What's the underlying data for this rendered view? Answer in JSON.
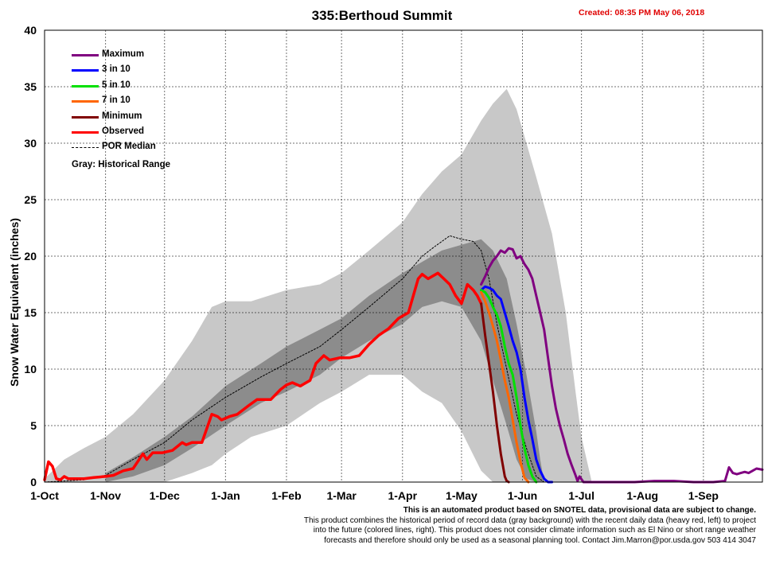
{
  "page": {
    "title": "335:Berthoud Summit",
    "created": "Created: 08:35 PM May 06, 2018",
    "footer": [
      "This is an automated product based on SNOTEL data, provisional data are subject to change.",
      "This product combines the historical period of record data (gray background) with the recent daily data (heavy red, left) to project",
      "into the future (colored lines, right). This product does not consider climate information such as El Nino or short range weather",
      "forecasts and therefore should only be used as a seasonal planning tool. Contact Jim.Marron@por.usda.gov 503 414 3047"
    ]
  },
  "legend": {
    "items": [
      {
        "label": "Maximum",
        "color": "#800080"
      },
      {
        "label": "3 in 10",
        "color": "#0000ff"
      },
      {
        "label": "5 in 10",
        "color": "#00e000"
      },
      {
        "label": "7 in 10",
        "color": "#ff6600"
      },
      {
        "label": "Minimum",
        "color": "#800000"
      },
      {
        "label": "Observed",
        "color": "#ff0000"
      },
      {
        "label": "POR Median",
        "color": "#000000",
        "dashed": true
      }
    ],
    "gray_note": "Gray: Historical Range"
  },
  "chart_data": {
    "type": "line",
    "title": "335:Berthoud Summit",
    "ylabel": "Snow Water Equivalent (inches)",
    "xlabel": "",
    "ylim": [
      0,
      40
    ],
    "yticks": [
      0,
      5,
      10,
      15,
      20,
      25,
      30,
      35,
      40
    ],
    "xlim_days": [
      0,
      365
    ],
    "x_unit": "days since 1-Oct",
    "x_ticks": [
      {
        "label": "1-Oct",
        "day": 0
      },
      {
        "label": "1-Nov",
        "day": 31
      },
      {
        "label": "1-Dec",
        "day": 61
      },
      {
        "label": "1-Jan",
        "day": 92
      },
      {
        "label": "1-Feb",
        "day": 123
      },
      {
        "label": "1-Mar",
        "day": 151
      },
      {
        "label": "1-Apr",
        "day": 182
      },
      {
        "label": "1-May",
        "day": 212
      },
      {
        "label": "1-Jun",
        "day": 243
      },
      {
        "label": "1-Jul",
        "day": 273
      },
      {
        "label": "1-Aug",
        "day": 304
      },
      {
        "label": "1-Sep",
        "day": 335
      }
    ],
    "grid": true,
    "legend_position": "top-left",
    "historical_range": {
      "color": "#c8c8c8",
      "x": [
        0,
        10,
        20,
        31,
        45,
        61,
        75,
        85,
        92,
        105,
        123,
        140,
        151,
        165,
        182,
        192,
        202,
        212,
        222,
        228,
        235,
        240,
        245,
        250,
        258,
        265,
        270,
        273,
        278
      ],
      "high": [
        0.3,
        2.0,
        3.0,
        4.0,
        6.0,
        9.0,
        12.5,
        15.5,
        16.0,
        16.0,
        17.0,
        17.5,
        18.5,
        20.5,
        23.0,
        25.5,
        27.5,
        29.0,
        32.0,
        33.5,
        34.8,
        33.0,
        30.0,
        27.0,
        22.0,
        15.0,
        8.0,
        4.0,
        0.2
      ],
      "low": [
        0,
        0,
        0,
        0,
        0,
        0,
        0.8,
        1.5,
        2.5,
        4.0,
        5.0,
        7.0,
        8.0,
        9.5,
        9.5,
        8.0,
        7.0,
        4.5,
        1.0,
        0,
        0,
        0,
        0,
        0,
        0,
        0,
        0,
        0,
        0
      ]
    },
    "interquartile_range": {
      "color": "#8c8c8c",
      "x": [
        31,
        45,
        61,
        75,
        92,
        110,
        123,
        140,
        151,
        165,
        182,
        192,
        202,
        212,
        222,
        228,
        235,
        240,
        245,
        250,
        252,
        254
      ],
      "high": [
        0.8,
        2.2,
        4.0,
        5.8,
        8.5,
        10.5,
        12.0,
        13.5,
        14.5,
        16.5,
        18.5,
        19.5,
        20.5,
        21.0,
        21.5,
        20.5,
        18.0,
        14.0,
        9.5,
        4.5,
        2.0,
        0
      ],
      "low": [
        0,
        0.5,
        1.5,
        3.0,
        5.0,
        7.0,
        8.0,
        9.5,
        11.0,
        12.5,
        14.0,
        15.5,
        16.0,
        15.5,
        12.5,
        9.0,
        5.0,
        2.0,
        0.3,
        0,
        0,
        0
      ]
    },
    "series": [
      {
        "name": "POR Median",
        "color": "#000000",
        "dashed": true,
        "x": [
          0,
          10,
          20,
          31,
          45,
          61,
          75,
          92,
          110,
          123,
          140,
          151,
          165,
          182,
          192,
          198,
          206,
          212,
          218,
          222,
          226,
          230,
          235,
          240,
          245,
          250,
          254
        ],
        "y": [
          0,
          0.1,
          0.2,
          0.6,
          2.0,
          3.5,
          5.5,
          7.5,
          9.3,
          10.5,
          12.0,
          13.5,
          15.5,
          18.0,
          20.0,
          20.8,
          21.8,
          21.5,
          21.3,
          20.5,
          18.0,
          14.0,
          10.0,
          6.0,
          3.0,
          0.5,
          0
        ]
      },
      {
        "name": "Observed",
        "color": "#ff0000",
        "x": [
          0,
          2,
          4,
          6,
          8,
          10,
          12,
          15,
          20,
          25,
          31,
          35,
          40,
          45,
          50,
          52,
          55,
          60,
          65,
          70,
          72,
          75,
          80,
          85,
          88,
          90,
          94,
          98,
          104,
          108,
          115,
          120,
          123,
          126,
          130,
          135,
          138,
          142,
          145,
          150,
          155,
          160,
          165,
          170,
          175,
          180,
          185,
          190,
          192,
          195,
          200,
          203,
          206,
          209,
          212,
          215,
          218,
          220,
          222
        ],
        "y": [
          0.2,
          1.8,
          1.4,
          0.3,
          0.2,
          0.5,
          0.3,
          0.3,
          0.3,
          0.4,
          0.5,
          0.6,
          1.0,
          1.2,
          2.5,
          2.0,
          2.6,
          2.6,
          2.8,
          3.5,
          3.3,
          3.5,
          3.5,
          6.0,
          5.8,
          5.5,
          5.8,
          6.0,
          6.8,
          7.3,
          7.3,
          8.2,
          8.6,
          8.8,
          8.5,
          9.0,
          10.5,
          11.2,
          10.8,
          11.0,
          11.0,
          11.2,
          12.2,
          13.0,
          13.6,
          14.5,
          15.0,
          18.0,
          18.4,
          18.0,
          18.5,
          18.0,
          17.5,
          16.5,
          15.8,
          17.5,
          17.0,
          16.5,
          15.8
        ]
      },
      {
        "name": "Maximum",
        "color": "#800080",
        "x": [
          222,
          224,
          226,
          228,
          230,
          232,
          234,
          236,
          238,
          240,
          242,
          244,
          246,
          248,
          250,
          252,
          254,
          256,
          258,
          260,
          262,
          264,
          266,
          268,
          270,
          271,
          272,
          274,
          276,
          278,
          280,
          290,
          300,
          310,
          320,
          330,
          340,
          346,
          348,
          350,
          352,
          354,
          356,
          358,
          360,
          362,
          365
        ],
        "y": [
          17.5,
          18.2,
          19.0,
          19.6,
          20.0,
          20.5,
          20.3,
          20.7,
          20.6,
          19.8,
          20.0,
          19.3,
          18.8,
          18.0,
          16.5,
          15.0,
          13.5,
          11.0,
          8.5,
          6.5,
          5.0,
          3.8,
          2.5,
          1.5,
          0.6,
          0.1,
          0.5,
          0,
          0,
          0,
          0,
          0,
          0,
          0.1,
          0.1,
          0,
          0,
          0.1,
          1.3,
          0.8,
          0.7,
          0.8,
          0.9,
          0.8,
          1.0,
          1.2,
          1.1
        ]
      },
      {
        "name": "3 in 10",
        "color": "#0000ff",
        "x": [
          222,
          224,
          226,
          228,
          230,
          232,
          234,
          236,
          238,
          240,
          242,
          244,
          246,
          248,
          250,
          252,
          254,
          256,
          258
        ],
        "y": [
          17.0,
          17.3,
          17.2,
          17.0,
          16.5,
          16.2,
          15.0,
          13.8,
          12.5,
          11.5,
          10.0,
          7.5,
          5.5,
          3.8,
          2.0,
          1.0,
          0.3,
          0,
          0
        ]
      },
      {
        "name": "5 in 10",
        "color": "#00e000",
        "x": [
          222,
          224,
          226,
          228,
          230,
          232,
          234,
          236,
          238,
          240,
          242,
          244,
          246,
          248,
          250
        ],
        "y": [
          17.0,
          16.8,
          16.3,
          15.5,
          14.8,
          13.8,
          12.0,
          10.5,
          9.5,
          7.5,
          5.0,
          3.0,
          1.5,
          0.5,
          0
        ]
      },
      {
        "name": "7 in 10",
        "color": "#ff6600",
        "x": [
          222,
          224,
          226,
          228,
          230,
          232,
          234,
          236,
          238,
          240,
          242,
          244,
          246
        ],
        "y": [
          16.8,
          16.0,
          15.0,
          13.8,
          12.5,
          10.8,
          9.0,
          7.5,
          5.5,
          3.5,
          1.8,
          0.4,
          0
        ]
      },
      {
        "name": "Minimum",
        "color": "#800000",
        "x": [
          222,
          224,
          226,
          228,
          230,
          232,
          234,
          235,
          236
        ],
        "y": [
          15.8,
          13.0,
          10.5,
          8.0,
          5.0,
          2.5,
          0.5,
          0.1,
          0
        ]
      }
    ]
  }
}
